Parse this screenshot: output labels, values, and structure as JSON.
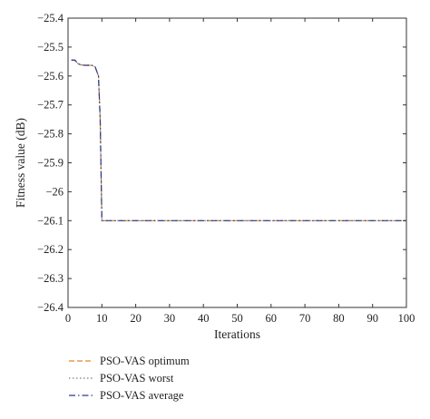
{
  "chart_data": {
    "type": "line",
    "title": "",
    "xlabel": "Iterations",
    "ylabel": "Fitness value (dB)",
    "xlim": [
      0,
      100
    ],
    "ylim": [
      -26.4,
      -25.4
    ],
    "xticks": [
      0,
      10,
      20,
      30,
      40,
      50,
      60,
      70,
      80,
      90,
      100
    ],
    "yticks": [
      -25.4,
      -25.5,
      -25.6,
      -25.7,
      -25.8,
      -25.9,
      -26,
      -26.1,
      -26.2,
      -26.3,
      -26.4
    ],
    "ytick_labels": [
      "−25.4",
      "−25.5",
      "−25.6",
      "−25.7",
      "−25.8",
      "−25.9",
      "−26",
      "−26.1",
      "−26.2",
      "−26.3",
      "−26.4"
    ],
    "grid": false,
    "legend_position": "below-left",
    "colors": {
      "optimum": "#e08a1e",
      "worst": "#7a7a7a",
      "average": "#2b3a8f"
    },
    "series": [
      {
        "name": "PSO-VAS optimum",
        "style": "dashed",
        "x": [
          1,
          2,
          3,
          4,
          5,
          6,
          7,
          8,
          9,
          9.5,
          10,
          100
        ],
        "y": [
          -25.545,
          -25.545,
          -25.558,
          -25.562,
          -25.563,
          -25.563,
          -25.563,
          -25.568,
          -25.6,
          -25.75,
          -26.1,
          -26.1
        ]
      },
      {
        "name": "PSO-VAS worst",
        "style": "dotted",
        "x": [
          1,
          2,
          3,
          4,
          5,
          6,
          7,
          8,
          9,
          9.5,
          10,
          100
        ],
        "y": [
          -25.545,
          -25.545,
          -25.558,
          -25.562,
          -25.563,
          -25.563,
          -25.563,
          -25.568,
          -25.6,
          -25.75,
          -26.1,
          -26.1
        ]
      },
      {
        "name": "PSO-VAS average",
        "style": "dashdot",
        "x": [
          1,
          2,
          3,
          4,
          5,
          6,
          7,
          8,
          9,
          9.5,
          10,
          100
        ],
        "y": [
          -25.545,
          -25.545,
          -25.558,
          -25.562,
          -25.563,
          -25.563,
          -25.563,
          -25.568,
          -25.6,
          -25.75,
          -26.1,
          -26.1
        ]
      }
    ]
  }
}
